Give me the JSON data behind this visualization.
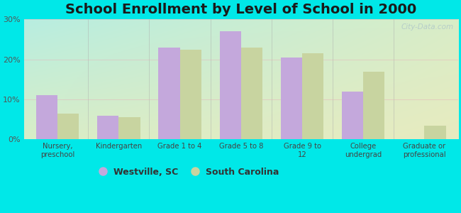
{
  "title": "School Enrollment by Level of School in 2000",
  "categories": [
    "Nursery,\npreschool",
    "Kindergarten",
    "Grade 1 to 4",
    "Grade 5 to 8",
    "Grade 9 to\n12",
    "College\nundergrad",
    "Graduate or\nprofessional"
  ],
  "westville": [
    11.0,
    6.0,
    23.0,
    27.0,
    20.5,
    12.0,
    0.0
  ],
  "south_carolina": [
    6.5,
    5.5,
    22.5,
    23.0,
    21.5,
    17.0,
    3.5
  ],
  "westville_color": "#c4a8dc",
  "south_carolina_color": "#c8d4a0",
  "background_color": "#00e8e8",
  "ylim": [
    0,
    30
  ],
  "yticks": [
    0,
    10,
    20,
    30
  ],
  "ytick_labels": [
    "0%",
    "10%",
    "20%",
    "30%"
  ],
  "legend_westville": "Westville, SC",
  "legend_south_carolina": "South Carolina",
  "title_fontsize": 14,
  "bar_width": 0.35,
  "watermark": "City-Data.com"
}
